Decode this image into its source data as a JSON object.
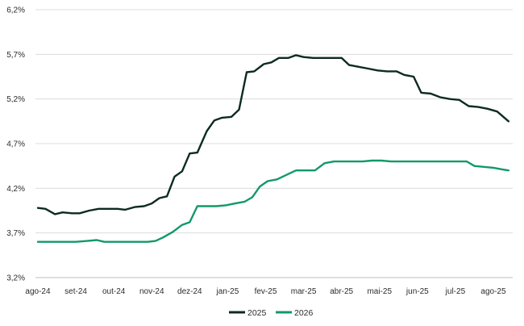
{
  "chart_data": {
    "type": "line",
    "title": "",
    "xlabel": "",
    "ylabel": "",
    "ylim": [
      3.2,
      6.2
    ],
    "y_ticks": [
      "3,2%",
      "3,7%",
      "4,2%",
      "4,7%",
      "5,2%",
      "5,7%",
      "6,2%"
    ],
    "y_tick_values": [
      3.2,
      3.7,
      4.2,
      4.7,
      5.2,
      5.7,
      6.2
    ],
    "x_ticks": [
      "ago-24",
      "set-24",
      "out-24",
      "nov-24",
      "dez-24",
      "jan-25",
      "fev-25",
      "mar-25",
      "abr-25",
      "mai-25",
      "jun-25",
      "jul-25",
      "ago-25"
    ],
    "grid": "horizontal",
    "legend_position": "bottom",
    "series": [
      {
        "name": "2025",
        "color": "#0d2b1f",
        "points": [
          [
            0.0,
            3.98
          ],
          [
            0.2,
            3.97
          ],
          [
            0.45,
            3.91
          ],
          [
            0.65,
            3.93
          ],
          [
            0.9,
            3.92
          ],
          [
            1.1,
            3.92
          ],
          [
            1.35,
            3.95
          ],
          [
            1.6,
            3.97
          ],
          [
            1.85,
            3.97
          ],
          [
            2.1,
            3.97
          ],
          [
            2.3,
            3.96
          ],
          [
            2.55,
            3.99
          ],
          [
            2.8,
            4.0
          ],
          [
            3.0,
            4.03
          ],
          [
            3.2,
            4.09
          ],
          [
            3.4,
            4.11
          ],
          [
            3.6,
            4.33
          ],
          [
            3.8,
            4.39
          ],
          [
            4.0,
            4.59
          ],
          [
            4.2,
            4.6
          ],
          [
            4.45,
            4.84
          ],
          [
            4.65,
            4.96
          ],
          [
            4.85,
            4.99
          ],
          [
            5.1,
            5.0
          ],
          [
            5.3,
            5.08
          ],
          [
            5.5,
            5.5
          ],
          [
            5.7,
            5.51
          ],
          [
            5.95,
            5.59
          ],
          [
            6.15,
            5.61
          ],
          [
            6.35,
            5.66
          ],
          [
            6.6,
            5.66
          ],
          [
            6.8,
            5.69
          ],
          [
            7.0,
            5.67
          ],
          [
            7.25,
            5.66
          ],
          [
            7.5,
            5.66
          ],
          [
            7.75,
            5.66
          ],
          [
            8.0,
            5.66
          ],
          [
            8.2,
            5.58
          ],
          [
            8.45,
            5.56
          ],
          [
            8.7,
            5.54
          ],
          [
            8.95,
            5.52
          ],
          [
            9.2,
            5.51
          ],
          [
            9.45,
            5.51
          ],
          [
            9.65,
            5.47
          ],
          [
            9.9,
            5.45
          ],
          [
            10.1,
            5.27
          ],
          [
            10.35,
            5.26
          ],
          [
            10.6,
            5.22
          ],
          [
            10.85,
            5.2
          ],
          [
            11.1,
            5.19
          ],
          [
            11.35,
            5.12
          ],
          [
            11.6,
            5.11
          ],
          [
            11.85,
            5.09
          ],
          [
            12.1,
            5.06
          ],
          [
            12.4,
            4.95
          ]
        ]
      },
      {
        "name": "2026",
        "color": "#129968",
        "points": [
          [
            0.0,
            3.6
          ],
          [
            0.5,
            3.6
          ],
          [
            1.0,
            3.6
          ],
          [
            1.3,
            3.61
          ],
          [
            1.55,
            3.62
          ],
          [
            1.75,
            3.6
          ],
          [
            2.0,
            3.6
          ],
          [
            2.5,
            3.6
          ],
          [
            2.9,
            3.6
          ],
          [
            3.1,
            3.61
          ],
          [
            3.3,
            3.65
          ],
          [
            3.55,
            3.71
          ],
          [
            3.8,
            3.79
          ],
          [
            4.0,
            3.82
          ],
          [
            4.2,
            4.0
          ],
          [
            4.45,
            4.0
          ],
          [
            4.7,
            4.0
          ],
          [
            4.95,
            4.01
          ],
          [
            5.2,
            4.03
          ],
          [
            5.45,
            4.05
          ],
          [
            5.65,
            4.1
          ],
          [
            5.85,
            4.22
          ],
          [
            6.05,
            4.28
          ],
          [
            6.3,
            4.3
          ],
          [
            6.55,
            4.35
          ],
          [
            6.8,
            4.4
          ],
          [
            7.05,
            4.4
          ],
          [
            7.3,
            4.4
          ],
          [
            7.55,
            4.48
          ],
          [
            7.8,
            4.5
          ],
          [
            8.05,
            4.5
          ],
          [
            8.3,
            4.5
          ],
          [
            8.55,
            4.5
          ],
          [
            8.8,
            4.51
          ],
          [
            9.05,
            4.51
          ],
          [
            9.3,
            4.5
          ],
          [
            9.55,
            4.5
          ],
          [
            9.8,
            4.5
          ],
          [
            10.05,
            4.5
          ],
          [
            10.3,
            4.5
          ],
          [
            10.55,
            4.5
          ],
          [
            10.8,
            4.5
          ],
          [
            11.05,
            4.5
          ],
          [
            11.3,
            4.5
          ],
          [
            11.5,
            4.45
          ],
          [
            11.75,
            4.44
          ],
          [
            12.0,
            4.43
          ],
          [
            12.25,
            4.41
          ],
          [
            12.4,
            4.4
          ]
        ]
      }
    ]
  }
}
